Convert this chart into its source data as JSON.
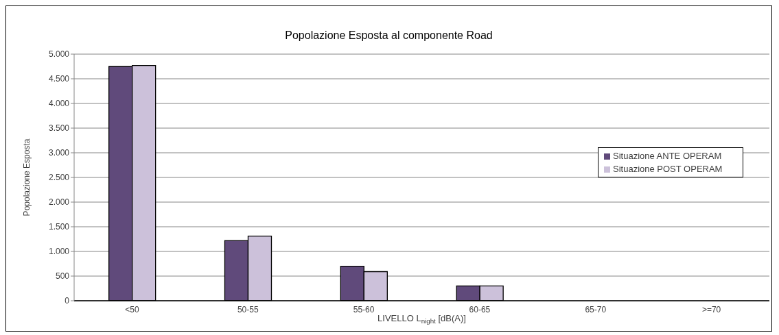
{
  "chart_data": {
    "type": "bar",
    "title": "Popolazione Esposta al componente Road",
    "xlabel": "LIVELLO L$_{night}$ [dB(A)]",
    "ylabel": "Popolazione Esposta",
    "categories": [
      "<50",
      "50-55",
      "55-60",
      "60-65",
      "65-70",
      ">=70"
    ],
    "series": [
      {
        "name": "Situazione ANTE OPERAM",
        "color": "#604a7b",
        "values": [
          4750,
          1220,
          700,
          300,
          0,
          0
        ]
      },
      {
        "name": "Situazione POST OPERAM",
        "color": "#ccc1da",
        "values": [
          4770,
          1310,
          590,
          300,
          0,
          0
        ]
      }
    ],
    "ylim": [
      0,
      5000
    ],
    "yticks": [
      0,
      500,
      {
        "value": 1000,
        "label": "1.000"
      },
      {
        "value": 1500,
        "label": "1.500"
      },
      {
        "value": 2000,
        "label": "2.000"
      },
      {
        "value": 2500,
        "label": "2.500"
      },
      {
        "value": 3000,
        "label": "3.000"
      },
      {
        "value": 3500,
        "label": "3.500"
      },
      {
        "value": 4000,
        "label": "4.000"
      },
      {
        "value": 4500,
        "label": "4.500"
      },
      {
        "value": 5000,
        "label": "5.000"
      }
    ],
    "grid": "y",
    "legend": "right"
  }
}
